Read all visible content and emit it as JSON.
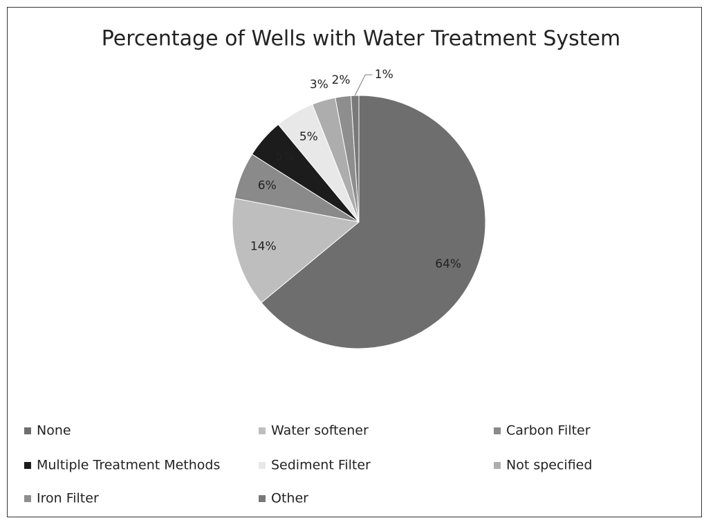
{
  "chart_data": {
    "type": "pie",
    "title": "Percentage of Wells with Water Treatment System",
    "categories": [
      "None",
      "Water softener",
      "Carbon Filter",
      "Multiple Treatment Methods",
      "Sediment Filter",
      "Not specified",
      "Iron Filter",
      "Other"
    ],
    "values": [
      64,
      14,
      6,
      5,
      5,
      3,
      2,
      1
    ],
    "value_labels": [
      "64%",
      "14%",
      "6%",
      "5%",
      "5%",
      "3%",
      "2%",
      "1%"
    ],
    "colors": [
      "#6e6e6e",
      "#bebebe",
      "#8a8a8a",
      "#1c1c1c",
      "#e8e8e8",
      "#adadad",
      "#8e8e8e",
      "#797979"
    ],
    "legend": "bottom"
  }
}
